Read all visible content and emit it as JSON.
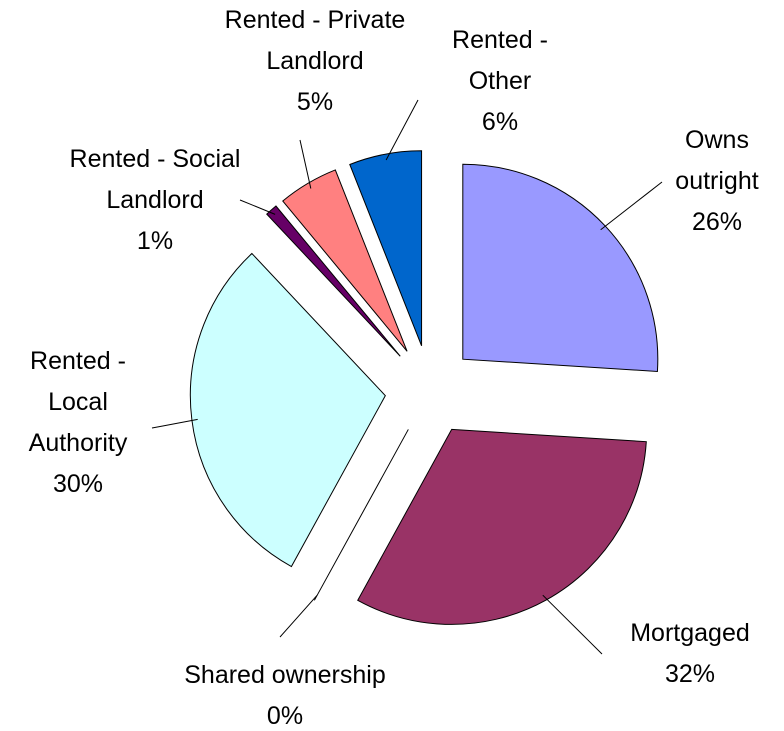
{
  "chart_data": {
    "type": "pie",
    "categories": [
      "Owns outright",
      "Mortgaged",
      "Shared ownership",
      "Rented - Local Authority",
      "Rented - Social Landlord",
      "Rented - Private Landlord",
      "Rented - Other"
    ],
    "values": [
      26,
      32,
      0,
      30,
      1,
      5,
      6
    ],
    "value_labels": [
      "26%",
      "32%",
      "0%",
      "30%",
      "1%",
      "5%",
      "6%"
    ],
    "colors": [
      "#9999ff",
      "#993366",
      "#ffffcc",
      "#ccffff",
      "#660066",
      "#ff8080",
      "#0066cc"
    ]
  }
}
